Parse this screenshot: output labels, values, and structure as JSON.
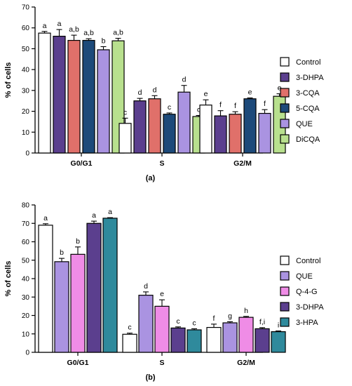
{
  "chart_data": [
    {
      "type": "bar",
      "panel_label": "(a)",
      "ylabel": "% of cells",
      "ylim": [
        0,
        70
      ],
      "yticks": [
        "0",
        "10",
        "20",
        "30",
        "40",
        "50",
        "60",
        "70"
      ],
      "categories": [
        "G0/G1",
        "S",
        "G2/M"
      ],
      "legend_position": "right",
      "series": [
        {
          "name": "Control",
          "color": "#ffffff",
          "values": [
            57.5,
            14.2,
            23.0
          ],
          "errors": [
            0.8,
            2.5,
            2.5
          ],
          "labels": [
            "a",
            "c",
            "e"
          ]
        },
        {
          "name": "3-DHPA",
          "color": "#5b3f8e",
          "values": [
            56.0,
            25.0,
            17.8
          ],
          "errors": [
            3.2,
            1.2,
            2.5
          ],
          "labels": [
            "a",
            "d",
            "f"
          ]
        },
        {
          "name": "3-CQA",
          "color": "#e0706a",
          "values": [
            54.0,
            26.0,
            18.6
          ],
          "errors": [
            2.5,
            1.5,
            1.2
          ],
          "labels": [
            "a,b",
            "d",
            "f"
          ]
        },
        {
          "name": "5-CQA",
          "color": "#1d4a7a",
          "values": [
            54.0,
            18.6,
            26.0
          ],
          "errors": [
            0.8,
            0.6,
            0.4
          ],
          "labels": [
            "a,b",
            "c",
            "e"
          ]
        },
        {
          "name": "QUE",
          "color": "#aa93e1",
          "values": [
            49.5,
            29.2,
            19.0
          ],
          "errors": [
            1.5,
            3.2,
            1.8
          ],
          "labels": [
            "b",
            "d",
            "f"
          ]
        },
        {
          "name": "DiCQA",
          "color": "#b8e08e",
          "values": [
            53.8,
            17.5,
            27.2
          ],
          "errors": [
            1.2,
            0.5,
            1.2
          ],
          "labels": [
            "a,b",
            "c",
            "e"
          ]
        }
      ]
    },
    {
      "type": "bar",
      "panel_label": "(b)",
      "ylabel": "% of cells",
      "ylim": [
        0,
        80
      ],
      "yticks": [
        "0",
        "10",
        "20",
        "30",
        "40",
        "50",
        "60",
        "70",
        "80"
      ],
      "categories": [
        "G0/G1",
        "S",
        "G2/M"
      ],
      "legend_position": "right",
      "series": [
        {
          "name": "Control",
          "color": "#ffffff",
          "values": [
            69.0,
            9.8,
            13.5
          ],
          "errors": [
            0.8,
            0.6,
            1.8
          ],
          "labels": [
            "a",
            "c",
            "f"
          ]
        },
        {
          "name": "QUE",
          "color": "#aa93e1",
          "values": [
            49.2,
            31.0,
            16.0
          ],
          "errors": [
            1.8,
            1.8,
            0.6
          ],
          "labels": [
            "b",
            "d",
            "g"
          ]
        },
        {
          "name": "Q-4-G",
          "color": "#ef8ce6",
          "values": [
            53.2,
            25.0,
            19.0
          ],
          "errors": [
            4.0,
            3.5,
            0.5
          ],
          "labels": [
            "b",
            "e",
            "h"
          ]
        },
        {
          "name": "3-DHPA",
          "color": "#5b3f8e",
          "values": [
            70.0,
            13.2,
            12.8
          ],
          "errors": [
            1.2,
            0.6,
            0.6
          ],
          "labels": [
            "a",
            "c",
            "f,i"
          ]
        },
        {
          "name": "3-HPA",
          "color": "#2f8a9c",
          "values": [
            72.8,
            12.2,
            11.2
          ],
          "errors": [
            0.3,
            0.6,
            0.4
          ],
          "labels": [
            "a",
            "c",
            "i"
          ]
        }
      ]
    }
  ]
}
